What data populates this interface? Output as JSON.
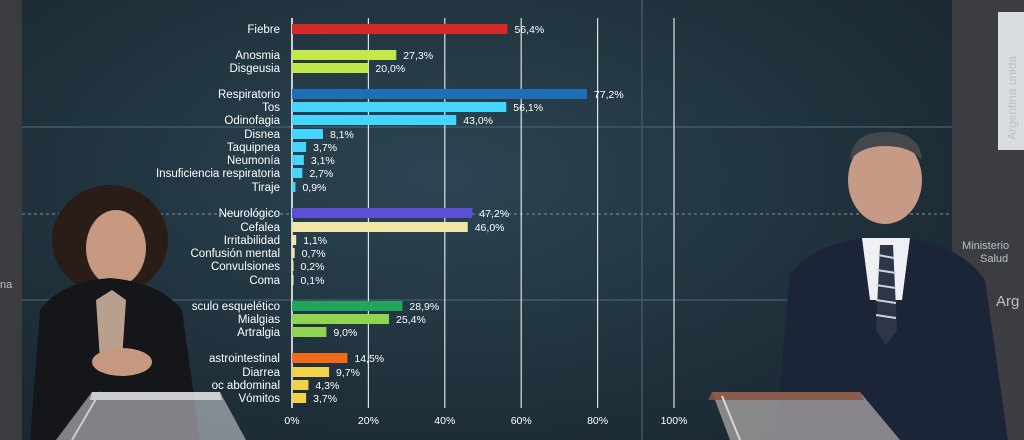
{
  "chart_data": {
    "type": "bar",
    "orientation": "horizontal",
    "xlim": [
      0,
      100
    ],
    "tick_labels": [
      "0%",
      "20%",
      "40%",
      "60%",
      "80%",
      "100%"
    ],
    "ticks": [
      0,
      20,
      40,
      60,
      80,
      100
    ],
    "bars": [
      {
        "label": "Fiebre",
        "value": 56.4,
        "value_label": "56,4%",
        "color": "#d42a2a"
      },
      {
        "label": "Anosmia",
        "value": 27.3,
        "value_label": "27,3%",
        "color": "#c3e84a"
      },
      {
        "label": "Disgeusia",
        "value": 20.0,
        "value_label": "20,0%",
        "color": "#c3e84a"
      },
      {
        "label": "Respiratorio",
        "value": 77.2,
        "value_label": "77,2%",
        "color": "#1e6fb3"
      },
      {
        "label": "Tos",
        "value": 56.1,
        "value_label": "56,1%",
        "color": "#45d6ff"
      },
      {
        "label": "Odinofagia",
        "value": 43.0,
        "value_label": "43,0%",
        "color": "#45d6ff"
      },
      {
        "label": "Disnea",
        "value": 8.1,
        "value_label": "8,1%",
        "color": "#45d6ff"
      },
      {
        "label": "Taquipnea",
        "value": 3.7,
        "value_label": "3,7%",
        "color": "#45d6ff"
      },
      {
        "label": "Neumonía",
        "value": 3.1,
        "value_label": "3,1%",
        "color": "#45d6ff"
      },
      {
        "label": "Insuficiencia respiratoria",
        "value": 2.7,
        "value_label": "2,7%",
        "color": "#45d6ff"
      },
      {
        "label": "Tiraje",
        "value": 0.9,
        "value_label": "0,9%",
        "color": "#45d6ff"
      },
      {
        "label": "Neurológico",
        "value": 47.2,
        "value_label": "47,2%",
        "color": "#5b4fd6"
      },
      {
        "label": "Cefalea",
        "value": 46.0,
        "value_label": "46,0%",
        "color": "#f2e6a8"
      },
      {
        "label": "Irritabilidad",
        "value": 1.1,
        "value_label": "1,1%",
        "color": "#f2e6a8"
      },
      {
        "label": "Confusión mental",
        "value": 0.7,
        "value_label": "0,7%",
        "color": "#f2e6a8"
      },
      {
        "label": "Convulsiones",
        "value": 0.2,
        "value_label": "0,2%",
        "color": "#f2e6a8"
      },
      {
        "label": "Coma",
        "value": 0.1,
        "value_label": "0,1%",
        "color": "#f2e6a8"
      },
      {
        "label": "sculo esquelético",
        "value": 28.9,
        "value_label": "28,9%",
        "color": "#1fa65a"
      },
      {
        "label": "Mialgias",
        "value": 25.4,
        "value_label": "25,4%",
        "color": "#8fd64e"
      },
      {
        "label": "Artralgia",
        "value": 9.0,
        "value_label": "9,0%",
        "color": "#8fd64e"
      },
      {
        "label": "astrointestinal",
        "value": 14.5,
        "value_label": "14,5%",
        "color": "#f26a1b"
      },
      {
        "label": "Diarrea",
        "value": 9.7,
        "value_label": "9,7%",
        "color": "#f2d24a"
      },
      {
        "label": "oc abdominal",
        "value": 4.3,
        "value_label": "4,3%",
        "color": "#f2d24a"
      },
      {
        "label": "Vómitos",
        "value": 3.7,
        "value_label": "3,7%",
        "color": "#f2d24a"
      }
    ]
  },
  "side_panel": {
    "vertical_label": "Argentina unida",
    "ministry_line1": "Ministerio",
    "ministry_line2": "Salud",
    "arg_text": "Arg",
    "left_edge_text": "na"
  },
  "colors": {
    "screen_bg": "#20323d",
    "gridline": "#ffffff",
    "suit": "#1c2438",
    "left_jacket": "#16181c",
    "lectern": "#d8dde0"
  }
}
